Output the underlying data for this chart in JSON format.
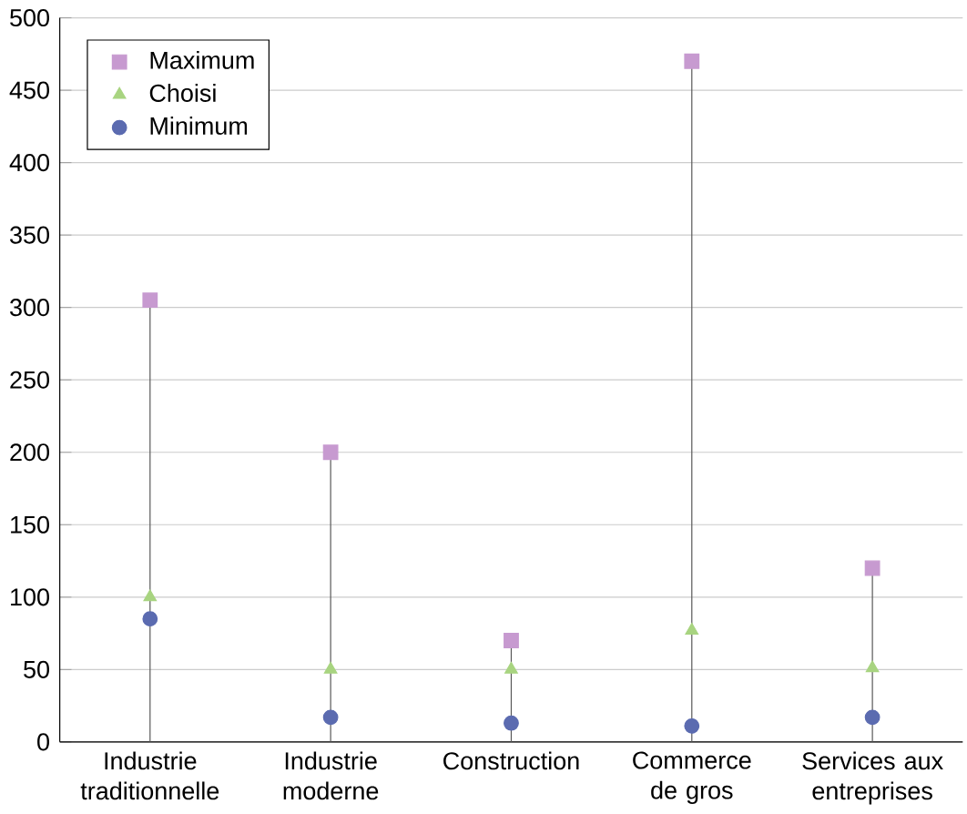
{
  "chart_data": {
    "type": "scatter",
    "categories": [
      "Industrie traditionnelle",
      "Industrie moderne",
      "Construction",
      "Commerce de gros",
      "Services aux entreprises"
    ],
    "series": [
      {
        "name": "Maximum",
        "type": "lollipop",
        "marker": "square",
        "color": "#c79ad0",
        "values": [
          305,
          200,
          70,
          470,
          120
        ]
      },
      {
        "name": "Choisi",
        "marker": "triangle",
        "color": "#a8d480",
        "values": [
          100,
          50,
          50,
          77,
          51
        ]
      },
      {
        "name": "Minimum",
        "marker": "circle",
        "color": "#5b6bb0",
        "values": [
          85,
          17,
          13,
          11,
          17
        ]
      }
    ],
    "ylim": [
      0,
      500
    ],
    "yticks": [
      0,
      50,
      100,
      150,
      200,
      250,
      300,
      350,
      400,
      450,
      500
    ],
    "grid": "y",
    "legend": "top left"
  }
}
